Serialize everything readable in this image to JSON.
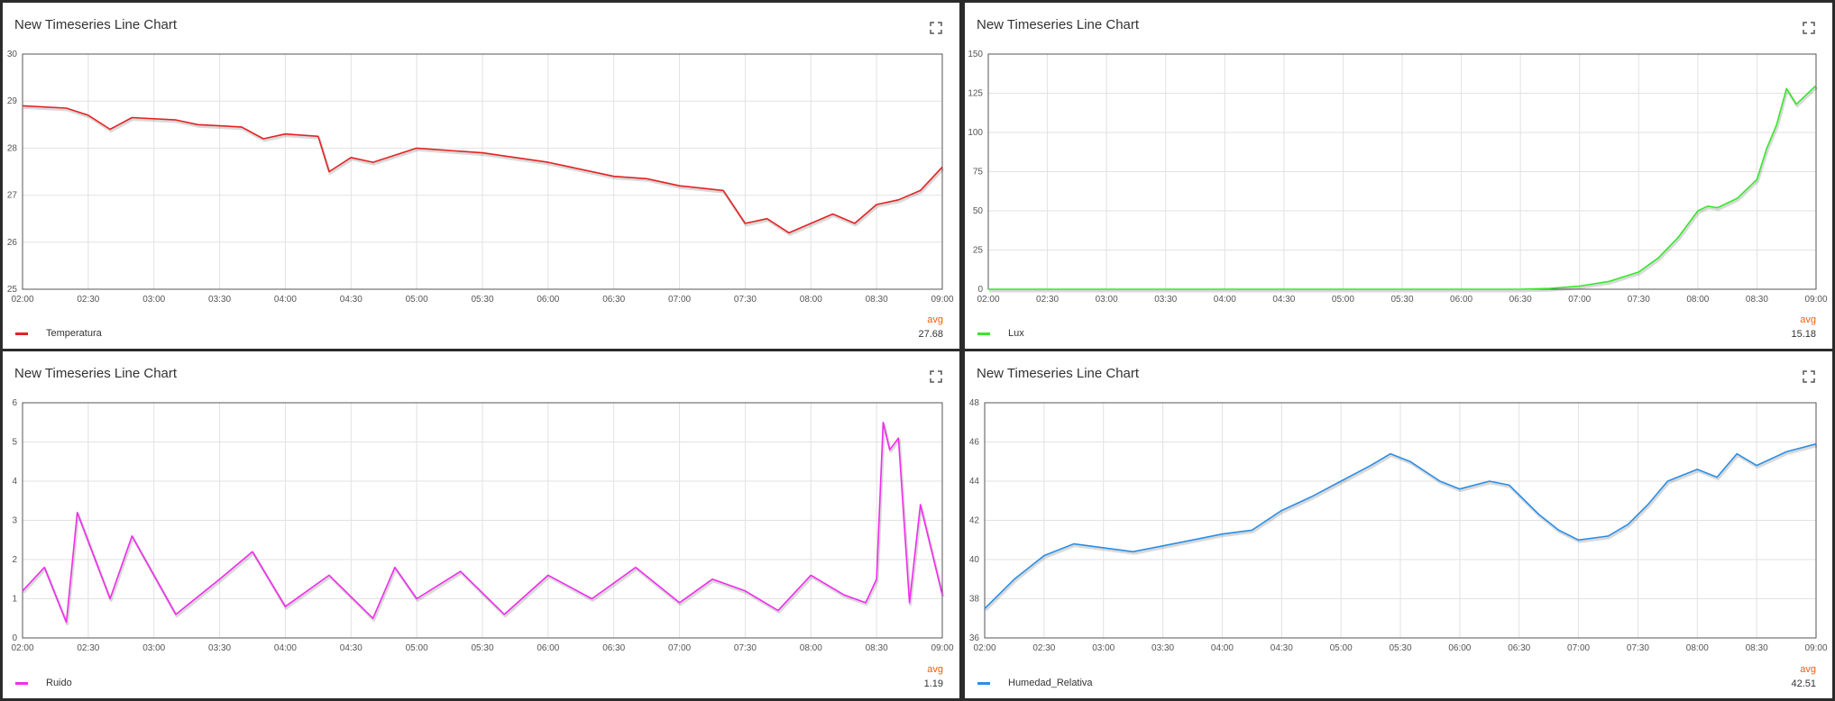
{
  "widgets": [
    {
      "title": "New Timeseries Line Chart",
      "legend_label": "Temperatura",
      "avg_header": "avg",
      "avg_value": "27.68",
      "color": "#e52222"
    },
    {
      "title": "New Timeseries Line Chart",
      "legend_label": "Lux",
      "avg_header": "avg",
      "avg_value": "15.18",
      "color": "#36e72a"
    },
    {
      "title": "New Timeseries Line Chart",
      "legend_label": "Ruido",
      "avg_header": "avg",
      "avg_value": "1.19",
      "color": "#f02cec"
    },
    {
      "title": "New Timeseries Line Chart",
      "legend_label": "Humedad_Relativa",
      "avg_header": "avg",
      "avg_value": "42.51",
      "color": "#2a8ee8"
    }
  ],
  "chart_data": [
    {
      "type": "line",
      "title": "New Timeseries Line Chart",
      "x_ticks": [
        "02:00",
        "02:30",
        "03:00",
        "03:30",
        "04:00",
        "04:30",
        "05:00",
        "05:30",
        "06:00",
        "06:30",
        "07:00",
        "07:30",
        "08:00",
        "08:30",
        "09:00"
      ],
      "y_ticks": [
        "25",
        "26",
        "27",
        "28",
        "29",
        "30"
      ],
      "xlim": [
        "02:00",
        "09:00"
      ],
      "ylim": [
        25,
        30
      ],
      "grid": true,
      "legend": "bottom-left",
      "series": [
        {
          "name": "Temperatura",
          "color": "#e52222",
          "x": [
            "02:00",
            "02:20",
            "02:30",
            "02:40",
            "02:50",
            "03:10",
            "03:20",
            "03:40",
            "03:50",
            "04:00",
            "04:15",
            "04:20",
            "04:30",
            "04:40",
            "05:00",
            "05:30",
            "06:00",
            "06:30",
            "06:45",
            "07:00",
            "07:20",
            "07:30",
            "07:40",
            "07:50",
            "08:00",
            "08:10",
            "08:20",
            "08:30",
            "08:40",
            "08:50",
            "09:00"
          ],
          "y": [
            28.9,
            28.85,
            28.7,
            28.4,
            28.65,
            28.6,
            28.5,
            28.45,
            28.2,
            28.3,
            28.25,
            27.5,
            27.8,
            27.7,
            28.0,
            27.9,
            27.7,
            27.4,
            27.35,
            27.2,
            27.1,
            26.4,
            26.5,
            26.2,
            26.4,
            26.6,
            26.4,
            26.8,
            26.9,
            27.1,
            27.6
          ]
        }
      ]
    },
    {
      "type": "line",
      "title": "New Timeseries Line Chart",
      "x_ticks": [
        "02:00",
        "02:30",
        "03:00",
        "03:30",
        "04:00",
        "04:30",
        "05:00",
        "05:30",
        "06:00",
        "06:30",
        "07:00",
        "07:30",
        "08:00",
        "08:30",
        "09:00"
      ],
      "y_ticks": [
        "0",
        "25",
        "50",
        "75",
        "100",
        "125",
        "150"
      ],
      "xlim": [
        "02:00",
        "09:00"
      ],
      "ylim": [
        0,
        150
      ],
      "grid": true,
      "legend": "bottom-left",
      "series": [
        {
          "name": "Lux",
          "color": "#36e72a",
          "x": [
            "02:00",
            "06:30",
            "06:45",
            "07:00",
            "07:15",
            "07:30",
            "07:40",
            "07:50",
            "08:00",
            "08:05",
            "08:10",
            "08:20",
            "08:30",
            "08:35",
            "08:40",
            "08:45",
            "08:50",
            "09:00"
          ],
          "y": [
            0,
            0,
            0.5,
            2,
            5,
            11,
            20,
            33,
            50,
            53,
            52,
            58,
            70,
            90,
            105,
            128,
            118,
            130
          ]
        }
      ]
    },
    {
      "type": "line",
      "title": "New Timeseries Line Chart",
      "x_ticks": [
        "02:00",
        "02:30",
        "03:00",
        "03:30",
        "04:00",
        "04:30",
        "05:00",
        "05:30",
        "06:00",
        "06:30",
        "07:00",
        "07:30",
        "08:00",
        "08:30",
        "09:00"
      ],
      "y_ticks": [
        "0",
        "1",
        "2",
        "3",
        "4",
        "5",
        "6"
      ],
      "xlim": [
        "02:00",
        "09:00"
      ],
      "ylim": [
        0,
        6
      ],
      "grid": true,
      "legend": "bottom-left",
      "series": [
        {
          "name": "Ruido",
          "color": "#f02cec",
          "x": [
            "02:00",
            "02:10",
            "02:20",
            "02:25",
            "02:40",
            "02:50",
            "03:10",
            "03:30",
            "03:45",
            "04:00",
            "04:20",
            "04:40",
            "04:50",
            "05:00",
            "05:20",
            "05:40",
            "06:00",
            "06:20",
            "06:40",
            "07:00",
            "07:15",
            "07:30",
            "07:45",
            "08:00",
            "08:15",
            "08:25",
            "08:30",
            "08:33",
            "08:36",
            "08:40",
            "08:45",
            "08:50",
            "09:00"
          ],
          "y": [
            1.2,
            1.8,
            0.4,
            3.2,
            1.0,
            2.6,
            0.6,
            1.5,
            2.2,
            0.8,
            1.6,
            0.5,
            1.8,
            1.0,
            1.7,
            0.6,
            1.6,
            1.0,
            1.8,
            0.9,
            1.5,
            1.2,
            0.7,
            1.6,
            1.1,
            0.9,
            1.5,
            5.5,
            4.8,
            5.1,
            0.9,
            3.4,
            1.1
          ]
        }
      ]
    },
    {
      "type": "line",
      "title": "New Timeseries Line Chart",
      "x_ticks": [
        "02:00",
        "02:30",
        "03:00",
        "03:30",
        "04:00",
        "04:30",
        "05:00",
        "05:30",
        "06:00",
        "06:30",
        "07:00",
        "07:30",
        "08:00",
        "08:30",
        "09:00"
      ],
      "y_ticks": [
        "36",
        "38",
        "40",
        "42",
        "44",
        "46",
        "48"
      ],
      "xlim": [
        "02:00",
        "09:00"
      ],
      "ylim": [
        36,
        48
      ],
      "grid": true,
      "legend": "bottom-left",
      "series": [
        {
          "name": "Humedad_Relativa",
          "color": "#2a8ee8",
          "x": [
            "02:00",
            "02:15",
            "02:30",
            "02:45",
            "03:00",
            "03:15",
            "03:30",
            "03:45",
            "04:00",
            "04:15",
            "04:30",
            "04:45",
            "05:00",
            "05:15",
            "05:25",
            "05:35",
            "05:50",
            "06:00",
            "06:15",
            "06:25",
            "06:40",
            "06:50",
            "07:00",
            "07:15",
            "07:25",
            "07:35",
            "07:45",
            "08:00",
            "08:10",
            "08:20",
            "08:30",
            "08:45",
            "09:00"
          ],
          "y": [
            37.5,
            39.0,
            40.2,
            40.8,
            40.6,
            40.4,
            40.7,
            41.0,
            41.3,
            41.5,
            42.5,
            43.2,
            44.0,
            44.8,
            45.4,
            45.0,
            44.0,
            43.6,
            44.0,
            43.8,
            42.3,
            41.5,
            41.0,
            41.2,
            41.8,
            42.8,
            44.0,
            44.6,
            44.2,
            45.4,
            44.8,
            45.5,
            45.9
          ]
        }
      ]
    }
  ]
}
